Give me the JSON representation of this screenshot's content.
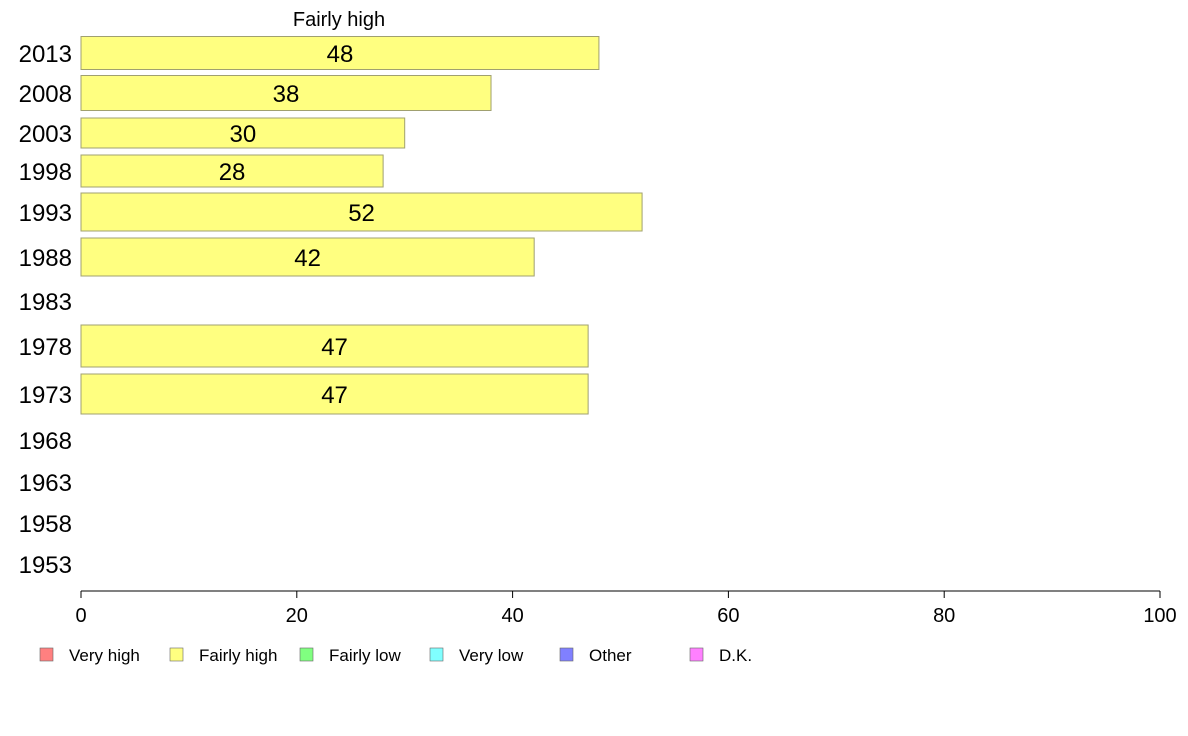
{
  "chart_data": {
    "type": "bar",
    "orientation": "horizontal",
    "title": "Fairly high",
    "categories": [
      "2013",
      "2008",
      "2003",
      "1998",
      "1993",
      "1988",
      "1983",
      "1978",
      "1973",
      "1968",
      "1963",
      "1958",
      "1953"
    ],
    "values": [
      48,
      38,
      30,
      28,
      52,
      42,
      null,
      47,
      47,
      null,
      null,
      null,
      null
    ],
    "xlim": [
      0,
      100
    ],
    "x_ticks": [
      0,
      20,
      40,
      60,
      80,
      100
    ],
    "grid": false,
    "legend": {
      "placement": "bottom",
      "entries": [
        {
          "label": "Very high",
          "color": "#ff8080"
        },
        {
          "label": "Fairly high",
          "color": "#ffff80"
        },
        {
          "label": "Fairly low",
          "color": "#80ff80"
        },
        {
          "label": "Very low",
          "color": "#80ffff"
        },
        {
          "label": "Other",
          "color": "#8080ff"
        },
        {
          "label": "D.K.",
          "color": "#ff80ff"
        }
      ]
    },
    "bar_color": "#ffff80",
    "bar_stroke": "#a0a070"
  }
}
